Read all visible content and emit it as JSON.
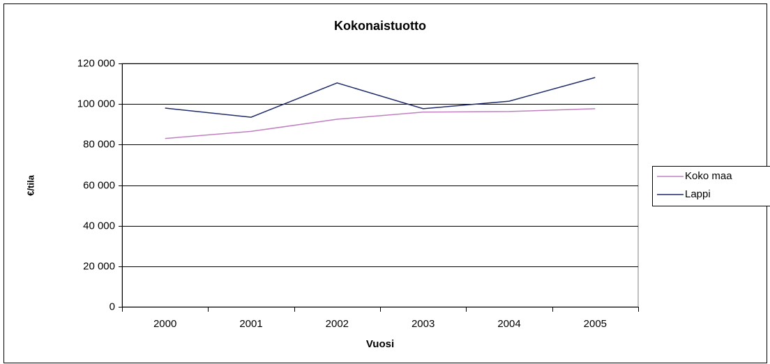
{
  "chart_data": {
    "type": "line",
    "title": "Kokonaistuotto",
    "x_label": "Vuosi",
    "y_label": "€/tila",
    "categories": [
      "2000",
      "2001",
      "2002",
      "2003",
      "2004",
      "2005"
    ],
    "series": [
      {
        "name": "Koko maa",
        "color": "#c080c0",
        "values": [
          83000,
          86500,
          92500,
          96000,
          96300,
          97700
        ]
      },
      {
        "name": "Lappi",
        "color": "#1f2a6b",
        "values": [
          98000,
          93500,
          110400,
          97700,
          101400,
          113100
        ]
      }
    ],
    "ylim": [
      0,
      120000
    ],
    "yticks": [
      0,
      {
        "value": 20000,
        "label": "20 000"
      },
      {
        "value": 40000,
        "label": "40 000"
      },
      {
        "value": 60000,
        "label": "60 000"
      },
      {
        "value": 80000,
        "label": "80 000"
      },
      {
        "value": 100000,
        "label": "100 000"
      },
      {
        "value": 120000,
        "label": "120 000"
      }
    ],
    "grid": true,
    "legend": "right"
  }
}
